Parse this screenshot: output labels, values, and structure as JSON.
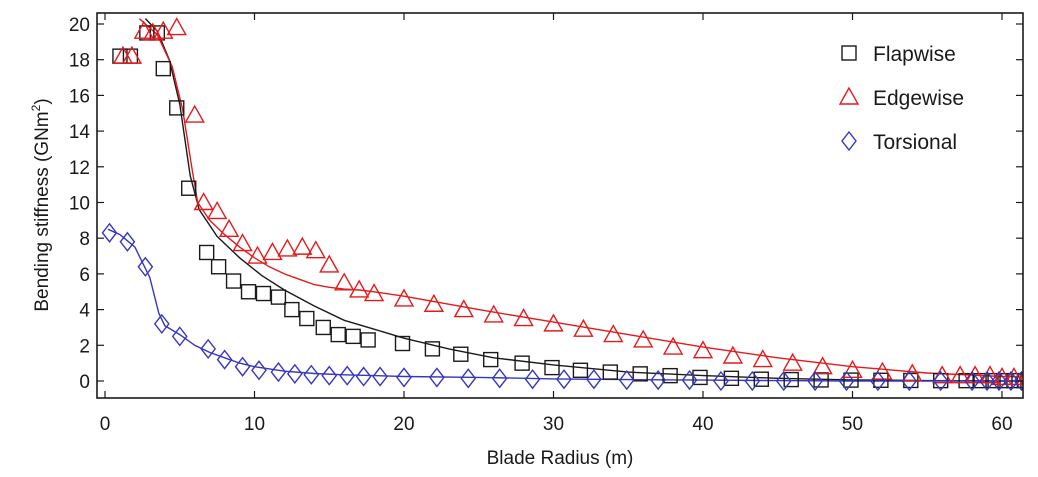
{
  "chart_data": {
    "type": "scatter",
    "xlabel": "Blade Radius (m)",
    "ylabel_main": "Bending stiffness (GNm",
    "ylabel_sup": "2",
    "ylabel_end": ")",
    "xlim": [
      0,
      63
    ],
    "ylim": [
      -1,
      21
    ],
    "xticks": [
      0,
      10,
      20,
      30,
      40,
      50,
      60
    ],
    "yticks": [
      0,
      2,
      4,
      6,
      8,
      10,
      12,
      14,
      16,
      18,
      20
    ],
    "grid": false,
    "legend_position": "top-right",
    "series": [
      {
        "name": "Flapwise",
        "color": "#1a1a1a",
        "marker": "square",
        "points": [
          [
            1.0,
            18.2
          ],
          [
            1.7,
            18.2
          ],
          [
            2.8,
            19.5
          ],
          [
            3.5,
            19.5
          ],
          [
            3.9,
            17.5
          ],
          [
            4.8,
            15.3
          ],
          [
            5.6,
            10.8
          ],
          [
            6.8,
            7.2
          ],
          [
            7.6,
            6.4
          ],
          [
            8.6,
            5.6
          ],
          [
            9.6,
            5.0
          ],
          [
            10.6,
            4.9
          ],
          [
            11.6,
            4.7
          ],
          [
            12.5,
            4.0
          ],
          [
            13.5,
            3.5
          ],
          [
            14.6,
            3.0
          ],
          [
            15.6,
            2.6
          ],
          [
            16.6,
            2.5
          ],
          [
            17.6,
            2.3
          ],
          [
            19.9,
            2.1
          ],
          [
            21.9,
            1.8
          ],
          [
            23.8,
            1.5
          ],
          [
            25.8,
            1.2
          ],
          [
            27.9,
            1.0
          ],
          [
            29.9,
            0.75
          ],
          [
            31.8,
            0.6
          ],
          [
            33.8,
            0.5
          ],
          [
            35.8,
            0.4
          ],
          [
            37.8,
            0.3
          ],
          [
            39.8,
            0.2
          ],
          [
            41.9,
            0.15
          ],
          [
            43.9,
            0.1
          ],
          [
            45.9,
            0.08
          ],
          [
            47.9,
            0.06
          ],
          [
            49.9,
            0.05
          ],
          [
            51.9,
            0.04
          ],
          [
            53.9,
            0.03
          ],
          [
            55.9,
            0.02
          ],
          [
            57.6,
            0.02
          ],
          [
            58.6,
            0.02
          ],
          [
            59.4,
            0.02
          ],
          [
            60.2,
            0.02
          ],
          [
            60.8,
            0.02
          ],
          [
            61.5,
            0.02
          ]
        ]
      },
      {
        "name": "Edgewise",
        "color": "#e41a1c",
        "marker": "triangle",
        "points": [
          [
            1.2,
            18.2
          ],
          [
            1.8,
            18.2
          ],
          [
            2.6,
            19.6
          ],
          [
            3.2,
            19.5
          ],
          [
            3.9,
            19.6
          ],
          [
            4.8,
            19.8
          ],
          [
            6.0,
            14.9
          ],
          [
            6.6,
            10.0
          ],
          [
            7.5,
            9.5
          ],
          [
            8.3,
            8.5
          ],
          [
            9.2,
            7.7
          ],
          [
            10.2,
            7.0
          ],
          [
            11.2,
            7.2
          ],
          [
            12.2,
            7.4
          ],
          [
            13.2,
            7.5
          ],
          [
            14.1,
            7.3
          ],
          [
            15.0,
            6.5
          ],
          [
            16.0,
            5.5
          ],
          [
            17.0,
            5.1
          ],
          [
            18.0,
            4.9
          ],
          [
            20.0,
            4.6
          ],
          [
            22.0,
            4.3
          ],
          [
            24.0,
            4.0
          ],
          [
            26.0,
            3.7
          ],
          [
            28.0,
            3.5
          ],
          [
            30.0,
            3.2
          ],
          [
            32.0,
            2.9
          ],
          [
            34.0,
            2.6
          ],
          [
            36.0,
            2.3
          ],
          [
            38.0,
            1.9
          ],
          [
            40.0,
            1.7
          ],
          [
            42.0,
            1.4
          ],
          [
            44.0,
            1.2
          ],
          [
            46.0,
            1.0
          ],
          [
            48.0,
            0.8
          ],
          [
            50.0,
            0.6
          ],
          [
            52.0,
            0.5
          ],
          [
            54.0,
            0.4
          ],
          [
            56.0,
            0.3
          ],
          [
            57.2,
            0.3
          ],
          [
            58.2,
            0.3
          ],
          [
            59.2,
            0.3
          ],
          [
            60.0,
            0.2
          ],
          [
            60.8,
            0.2
          ],
          [
            61.6,
            0.2
          ],
          [
            62.3,
            0.1
          ],
          [
            63.0,
            0.1
          ]
        ]
      },
      {
        "name": "Torsional",
        "color": "#3636c0",
        "marker": "diamond",
        "points": [
          [
            0.3,
            8.3
          ],
          [
            1.5,
            7.8
          ],
          [
            2.7,
            6.4
          ],
          [
            3.8,
            3.2
          ],
          [
            5.0,
            2.5
          ],
          [
            6.9,
            1.8
          ],
          [
            8.0,
            1.2
          ],
          [
            9.2,
            0.8
          ],
          [
            10.3,
            0.6
          ],
          [
            11.6,
            0.5
          ],
          [
            12.7,
            0.4
          ],
          [
            13.8,
            0.35
          ],
          [
            15.0,
            0.3
          ],
          [
            16.2,
            0.3
          ],
          [
            17.3,
            0.25
          ],
          [
            18.4,
            0.25
          ],
          [
            20.0,
            0.2
          ],
          [
            22.2,
            0.2
          ],
          [
            24.3,
            0.15
          ],
          [
            26.4,
            0.15
          ],
          [
            28.6,
            0.1
          ],
          [
            30.7,
            0.1
          ],
          [
            32.7,
            0.1
          ],
          [
            34.9,
            0.05
          ],
          [
            37.0,
            0.05
          ],
          [
            39.1,
            0.05
          ],
          [
            41.2,
            0.0
          ],
          [
            43.3,
            0.0
          ],
          [
            45.4,
            0.0
          ],
          [
            47.5,
            0.0
          ],
          [
            49.6,
            0.0
          ],
          [
            51.7,
            0.0
          ],
          [
            53.8,
            0.0
          ],
          [
            55.9,
            0.0
          ],
          [
            58.0,
            0.0
          ],
          [
            59.0,
            0.0
          ],
          [
            59.8,
            0.0
          ],
          [
            60.6,
            0.0
          ],
          [
            61.3,
            0.0
          ]
        ]
      }
    ],
    "fit_lines": [
      {
        "name": "Flapwise",
        "color": "#1a1a1a",
        "points": [
          [
            2.7,
            20.3
          ],
          [
            3.5,
            19.6
          ],
          [
            4.3,
            18.0
          ],
          [
            5.0,
            15.5
          ],
          [
            5.7,
            11.5
          ],
          [
            6.3,
            9.6
          ],
          [
            7.5,
            8.1
          ],
          [
            9.0,
            6.9
          ],
          [
            10.5,
            5.9
          ],
          [
            12.0,
            5.1
          ],
          [
            14.0,
            4.2
          ],
          [
            16.0,
            3.4
          ],
          [
            18.0,
            2.9
          ],
          [
            20.0,
            2.4
          ],
          [
            23.0,
            1.8
          ],
          [
            26.0,
            1.3
          ],
          [
            30.0,
            0.9
          ],
          [
            35.0,
            0.5
          ],
          [
            40.0,
            0.3
          ],
          [
            45.0,
            0.15
          ],
          [
            50.0,
            0.06
          ],
          [
            55.0,
            0.02
          ],
          [
            60.0,
            0.0
          ],
          [
            63.0,
            0.0
          ]
        ]
      },
      {
        "name": "Edgewise",
        "color": "#e41a1c",
        "points": [
          [
            2.3,
            20.3
          ],
          [
            3.5,
            19.4
          ],
          [
            4.5,
            17.6
          ],
          [
            5.2,
            15.2
          ],
          [
            5.8,
            12.0
          ],
          [
            6.2,
            10.0
          ],
          [
            7.0,
            9.0
          ],
          [
            8.0,
            8.2
          ],
          [
            9.0,
            7.5
          ],
          [
            10.0,
            6.9
          ],
          [
            11.0,
            6.4
          ],
          [
            12.0,
            6.0
          ],
          [
            13.0,
            5.7
          ],
          [
            14.0,
            5.4
          ],
          [
            15.0,
            5.25
          ],
          [
            16.0,
            5.15
          ],
          [
            17.0,
            5.1
          ],
          [
            18.0,
            5.0
          ],
          [
            20.0,
            4.75
          ],
          [
            25.0,
            4.0
          ],
          [
            30.0,
            3.3
          ],
          [
            35.0,
            2.6
          ],
          [
            40.0,
            1.9
          ],
          [
            45.0,
            1.3
          ],
          [
            50.0,
            0.8
          ],
          [
            55.0,
            0.45
          ],
          [
            60.0,
            0.25
          ],
          [
            63.0,
            0.2
          ]
        ]
      },
      {
        "name": "Torsional",
        "color": "#3636c0",
        "points": [
          [
            0.2,
            8.5
          ],
          [
            1.0,
            8.2
          ],
          [
            2.0,
            7.5
          ],
          [
            3.0,
            5.8
          ],
          [
            3.6,
            3.8
          ],
          [
            4.0,
            3.1
          ],
          [
            5.0,
            2.6
          ],
          [
            6.0,
            2.0
          ],
          [
            7.0,
            1.6
          ],
          [
            8.0,
            1.3
          ],
          [
            9.0,
            1.0
          ],
          [
            10.0,
            0.8
          ],
          [
            12.0,
            0.55
          ],
          [
            14.0,
            0.42
          ],
          [
            16.0,
            0.35
          ],
          [
            18.0,
            0.3
          ],
          [
            20.0,
            0.25
          ],
          [
            25.0,
            0.2
          ],
          [
            30.0,
            0.12
          ],
          [
            35.0,
            0.08
          ],
          [
            40.0,
            0.05
          ],
          [
            45.0,
            0.02
          ],
          [
            50.0,
            0.0
          ],
          [
            63.0,
            0.0
          ]
        ]
      }
    ]
  }
}
